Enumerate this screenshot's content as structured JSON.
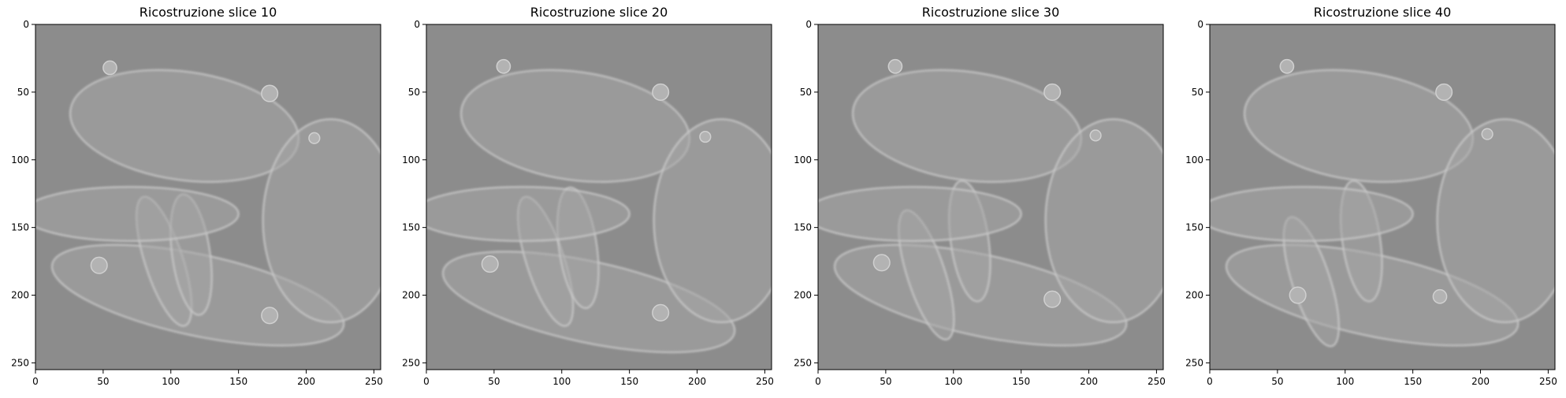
{
  "figure": {
    "background": "#ffffff"
  },
  "chart_data": [
    {
      "type": "heatmap",
      "title": "Ricostruzione slice 10",
      "xlabel": "",
      "ylabel": "",
      "xlim": [
        0,
        255
      ],
      "ylim": [
        255,
        0
      ],
      "xticks": [
        0,
        50,
        100,
        150,
        200,
        250
      ],
      "yticks": [
        0,
        50,
        100,
        150,
        200,
        250
      ],
      "colormap": "gray",
      "background_gray": "#8c8c8c",
      "grid": false,
      "features": [
        {
          "shape": "ellipse",
          "cx": 110,
          "cy": 75,
          "rx": 85,
          "ry": 40,
          "angle": 8,
          "tone": "light"
        },
        {
          "shape": "ellipse",
          "cx": 120,
          "cy": 200,
          "rx": 110,
          "ry": 30,
          "angle": 12,
          "tone": "light"
        },
        {
          "shape": "ellipse",
          "cx": 218,
          "cy": 145,
          "rx": 50,
          "ry": 75,
          "angle": 0,
          "tone": "light"
        },
        {
          "shape": "ellipse",
          "cx": 95,
          "cy": 175,
          "rx": 14,
          "ry": 50,
          "angle": -18,
          "tone": "light"
        },
        {
          "shape": "ellipse",
          "cx": 115,
          "cy": 170,
          "rx": 14,
          "ry": 45,
          "angle": -8,
          "tone": "light"
        },
        {
          "shape": "ellipse",
          "cx": 70,
          "cy": 140,
          "rx": 80,
          "ry": 20,
          "angle": 0,
          "tone": "light"
        },
        {
          "shape": "circle",
          "cx": 55,
          "cy": 32,
          "r": 5,
          "tone": "light"
        },
        {
          "shape": "circle",
          "cx": 173,
          "cy": 51,
          "r": 6,
          "tone": "light"
        },
        {
          "shape": "circle",
          "cx": 206,
          "cy": 84,
          "r": 4,
          "tone": "light"
        },
        {
          "shape": "circle",
          "cx": 47,
          "cy": 178,
          "r": 6,
          "tone": "light"
        },
        {
          "shape": "circle",
          "cx": 173,
          "cy": 215,
          "r": 6,
          "tone": "light"
        }
      ]
    },
    {
      "type": "heatmap",
      "title": "Ricostruzione slice 20",
      "xlabel": "",
      "ylabel": "",
      "xlim": [
        0,
        255
      ],
      "ylim": [
        255,
        0
      ],
      "xticks": [
        0,
        50,
        100,
        150,
        200,
        250
      ],
      "yticks": [
        0,
        50,
        100,
        150,
        200,
        250
      ],
      "colormap": "gray",
      "background_gray": "#8c8c8c",
      "grid": false,
      "features": [
        {
          "shape": "ellipse",
          "cx": 110,
          "cy": 75,
          "rx": 85,
          "ry": 40,
          "angle": 8,
          "tone": "light"
        },
        {
          "shape": "ellipse",
          "cx": 120,
          "cy": 205,
          "rx": 110,
          "ry": 30,
          "angle": 12,
          "tone": "light"
        },
        {
          "shape": "ellipse",
          "cx": 218,
          "cy": 145,
          "rx": 50,
          "ry": 75,
          "angle": 0,
          "tone": "light"
        },
        {
          "shape": "ellipse",
          "cx": 88,
          "cy": 175,
          "rx": 14,
          "ry": 50,
          "angle": -18,
          "tone": "light"
        },
        {
          "shape": "ellipse",
          "cx": 112,
          "cy": 165,
          "rx": 14,
          "ry": 45,
          "angle": -8,
          "tone": "light"
        },
        {
          "shape": "ellipse",
          "cx": 70,
          "cy": 140,
          "rx": 80,
          "ry": 20,
          "angle": 0,
          "tone": "light"
        },
        {
          "shape": "circle",
          "cx": 57,
          "cy": 31,
          "r": 5,
          "tone": "light"
        },
        {
          "shape": "circle",
          "cx": 173,
          "cy": 50,
          "r": 6,
          "tone": "light"
        },
        {
          "shape": "circle",
          "cx": 206,
          "cy": 83,
          "r": 4,
          "tone": "light"
        },
        {
          "shape": "circle",
          "cx": 47,
          "cy": 177,
          "r": 6,
          "tone": "light"
        },
        {
          "shape": "circle",
          "cx": 173,
          "cy": 213,
          "r": 6,
          "tone": "light"
        }
      ]
    },
    {
      "type": "heatmap",
      "title": "Ricostruzione slice 30",
      "xlabel": "",
      "ylabel": "",
      "xlim": [
        0,
        255
      ],
      "ylim": [
        255,
        0
      ],
      "xticks": [
        0,
        50,
        100,
        150,
        200,
        250
      ],
      "yticks": [
        0,
        50,
        100,
        150,
        200,
        250
      ],
      "colormap": "gray",
      "background_gray": "#8c8c8c",
      "grid": false,
      "features": [
        {
          "shape": "ellipse",
          "cx": 110,
          "cy": 75,
          "rx": 85,
          "ry": 40,
          "angle": 8,
          "tone": "light"
        },
        {
          "shape": "ellipse",
          "cx": 120,
          "cy": 200,
          "rx": 110,
          "ry": 30,
          "angle": 12,
          "tone": "light"
        },
        {
          "shape": "ellipse",
          "cx": 218,
          "cy": 145,
          "rx": 50,
          "ry": 75,
          "angle": 0,
          "tone": "light"
        },
        {
          "shape": "ellipse",
          "cx": 80,
          "cy": 185,
          "rx": 14,
          "ry": 50,
          "angle": -18,
          "tone": "light"
        },
        {
          "shape": "ellipse",
          "cx": 112,
          "cy": 160,
          "rx": 14,
          "ry": 45,
          "angle": -8,
          "tone": "light"
        },
        {
          "shape": "ellipse",
          "cx": 70,
          "cy": 140,
          "rx": 80,
          "ry": 20,
          "angle": 0,
          "tone": "light"
        },
        {
          "shape": "circle",
          "cx": 57,
          "cy": 31,
          "r": 5,
          "tone": "light"
        },
        {
          "shape": "circle",
          "cx": 173,
          "cy": 50,
          "r": 6,
          "tone": "light"
        },
        {
          "shape": "circle",
          "cx": 205,
          "cy": 82,
          "r": 4,
          "tone": "light"
        },
        {
          "shape": "circle",
          "cx": 47,
          "cy": 176,
          "r": 6,
          "tone": "light"
        },
        {
          "shape": "circle",
          "cx": 173,
          "cy": 203,
          "r": 6,
          "tone": "light"
        }
      ]
    },
    {
      "type": "heatmap",
      "title": "Ricostruzione slice 40",
      "xlabel": "",
      "ylabel": "",
      "xlim": [
        0,
        255
      ],
      "ylim": [
        255,
        0
      ],
      "xticks": [
        0,
        50,
        100,
        150,
        200,
        250
      ],
      "yticks": [
        0,
        50,
        100,
        150,
        200,
        250
      ],
      "colormap": "gray",
      "background_gray": "#8c8c8c",
      "grid": false,
      "features": [
        {
          "shape": "ellipse",
          "cx": 110,
          "cy": 75,
          "rx": 85,
          "ry": 40,
          "angle": 8,
          "tone": "light"
        },
        {
          "shape": "ellipse",
          "cx": 120,
          "cy": 200,
          "rx": 110,
          "ry": 30,
          "angle": 12,
          "tone": "light"
        },
        {
          "shape": "ellipse",
          "cx": 218,
          "cy": 145,
          "rx": 50,
          "ry": 75,
          "angle": 0,
          "tone": "light"
        },
        {
          "shape": "ellipse",
          "cx": 75,
          "cy": 190,
          "rx": 14,
          "ry": 50,
          "angle": -18,
          "tone": "light"
        },
        {
          "shape": "ellipse",
          "cx": 112,
          "cy": 160,
          "rx": 14,
          "ry": 45,
          "angle": -8,
          "tone": "light"
        },
        {
          "shape": "ellipse",
          "cx": 70,
          "cy": 140,
          "rx": 80,
          "ry": 20,
          "angle": 0,
          "tone": "light"
        },
        {
          "shape": "circle",
          "cx": 57,
          "cy": 31,
          "r": 5,
          "tone": "light"
        },
        {
          "shape": "circle",
          "cx": 173,
          "cy": 50,
          "r": 6,
          "tone": "light"
        },
        {
          "shape": "circle",
          "cx": 205,
          "cy": 81,
          "r": 4,
          "tone": "light"
        },
        {
          "shape": "circle",
          "cx": 65,
          "cy": 200,
          "r": 6,
          "tone": "light"
        },
        {
          "shape": "circle",
          "cx": 170,
          "cy": 201,
          "r": 5,
          "tone": "light"
        }
      ]
    }
  ]
}
